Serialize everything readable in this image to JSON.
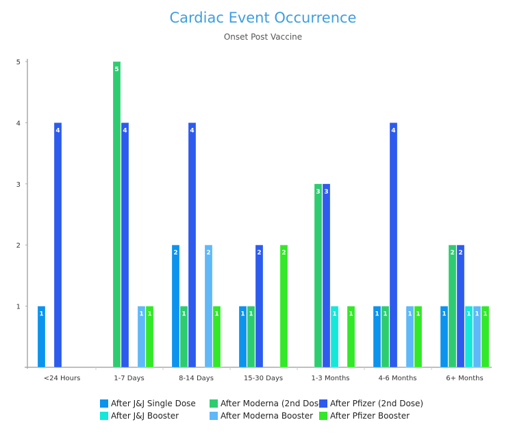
{
  "chart_data": {
    "type": "bar",
    "title": "Cardiac Event Occurrence",
    "subtitle": "Onset Post Vaccine",
    "xlabel": "",
    "ylabel": "",
    "ylim": [
      0,
      5
    ],
    "yticks": [
      "1",
      "2",
      "3",
      "4",
      "5"
    ],
    "grid": false,
    "legend_position": "bottom",
    "categories": [
      "<24 Hours",
      "1-7 Days",
      "8-14 Days",
      "15-30 Days",
      "1-3 Months",
      "4-6 Months",
      "6+ Months"
    ],
    "series": [
      {
        "name": "After J&J Single Dose",
        "color": "#0b93ee",
        "values": [
          1,
          0,
          2,
          1,
          0,
          1,
          1
        ]
      },
      {
        "name": "After Moderna (2nd Dose)",
        "color": "#2ecc71",
        "values": [
          0,
          5,
          1,
          1,
          3,
          1,
          2
        ]
      },
      {
        "name": "After Pfizer (2nd Dose)",
        "color": "#2d5bee",
        "values": [
          4,
          4,
          4,
          2,
          3,
          4,
          2
        ]
      },
      {
        "name": "After J&J Booster",
        "color": "#14e8d8",
        "values": [
          0,
          0,
          0,
          0,
          1,
          0,
          1
        ]
      },
      {
        "name": "After Moderna Booster",
        "color": "#5fb8f8",
        "values": [
          0,
          1,
          2,
          0,
          0,
          1,
          1
        ]
      },
      {
        "name": "After Pfizer Booster",
        "color": "#33e828",
        "values": [
          0,
          1,
          1,
          2,
          1,
          1,
          1
        ]
      }
    ]
  }
}
